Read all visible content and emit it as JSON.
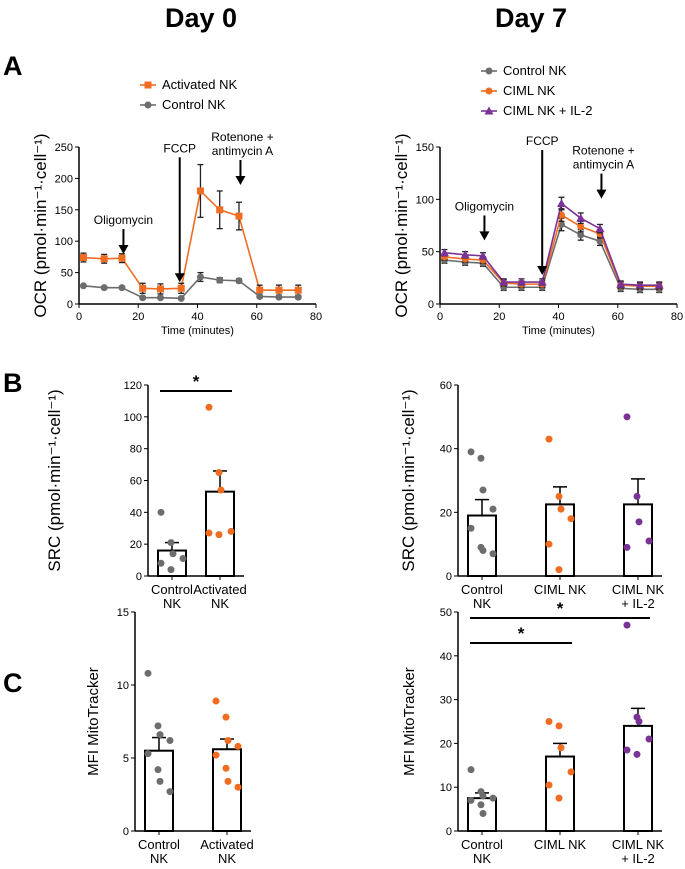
{
  "headers": {
    "day0": "Day 0",
    "day7": "Day 7"
  },
  "panels": {
    "A": "A",
    "B": "B",
    "C": "C"
  },
  "colors": {
    "grey": "#6d6d6d",
    "orange": "#ef6c21",
    "purple": "#7b3296",
    "black": "#000000"
  },
  "chart_data": [
    {
      "id": "A0",
      "type": "line",
      "xlabel": "Time (minutes)",
      "ylabel": "OCR (pmol·min⁻¹·cell⁻¹)",
      "xlim": [
        0,
        80
      ],
      "ylim": [
        0,
        250
      ],
      "xticks": [
        0,
        20,
        40,
        60,
        80
      ],
      "yticks": [
        0,
        50,
        100,
        150,
        200,
        250
      ],
      "legend": "top-left",
      "series": [
        {
          "name": "Activated NK",
          "color": "#ef6c21",
          "marker": "square",
          "x": [
            1.5,
            8.5,
            14.5,
            21.5,
            27.5,
            34.5,
            41,
            47.5,
            54,
            61,
            67.5,
            74
          ],
          "y": [
            74,
            72,
            73,
            25,
            24,
            25,
            180,
            150,
            140,
            22,
            22,
            22
          ],
          "err": [
            7,
            7,
            7,
            8,
            8,
            8,
            42,
            30,
            22,
            8,
            8,
            8
          ]
        },
        {
          "name": "Control NK",
          "color": "#6d6d6d",
          "marker": "circle",
          "x": [
            1.5,
            8.5,
            14.5,
            21.5,
            27.5,
            34.5,
            41,
            47.5,
            54,
            61,
            67.5,
            74
          ],
          "y": [
            29,
            26,
            26,
            10,
            10,
            9,
            43,
            38,
            37,
            12,
            11,
            11
          ],
          "err": [
            2,
            2,
            2,
            2,
            2,
            2,
            7,
            4,
            3,
            2,
            2,
            2
          ]
        }
      ],
      "annotations": [
        {
          "text": [
            "Oligomycin"
          ],
          "x": 15,
          "y": 70
        },
        {
          "text": [
            "FCCP"
          ],
          "x": 34,
          "y": 25
        },
        {
          "text": [
            "Rotenone +",
            "antimycin A"
          ],
          "x": 54.5,
          "y": 180
        }
      ]
    },
    {
      "id": "A7",
      "type": "line",
      "xlabel": "Time (minutes)",
      "ylabel": "OCR (pmol·min⁻¹·cell⁻¹)",
      "xlim": [
        0,
        80
      ],
      "ylim": [
        0,
        150
      ],
      "xticks": [
        0,
        20,
        40,
        60,
        80
      ],
      "yticks": [
        0,
        50,
        100,
        150
      ],
      "legend": "top-left",
      "series": [
        {
          "name": "Control NK",
          "color": "#6d6d6d",
          "marker": "circle",
          "x": [
            1.5,
            8.5,
            14.5,
            21.5,
            27.5,
            34.5,
            41,
            47.5,
            54,
            61,
            67.5,
            74
          ],
          "y": [
            42,
            40,
            39,
            16,
            16,
            16,
            76,
            66,
            60,
            15,
            14,
            14
          ],
          "err": [
            3,
            3,
            3,
            3,
            3,
            3,
            6,
            5,
            4,
            3,
            3,
            3
          ]
        },
        {
          "name": "CIML NK",
          "color": "#ef6c21",
          "marker": "circle",
          "x": [
            1.5,
            8.5,
            14.5,
            21.5,
            27.5,
            34.5,
            41,
            47.5,
            54,
            61,
            67.5,
            74
          ],
          "y": [
            45,
            43,
            42,
            20,
            19,
            19,
            85,
            74,
            67,
            18,
            17,
            17
          ],
          "err": [
            3,
            3,
            3,
            3,
            3,
            3,
            6,
            5,
            4,
            3,
            3,
            3
          ]
        },
        {
          "name": "CIML NK + IL-2",
          "color": "#7b3296",
          "marker": "triangle",
          "x": [
            1.5,
            8.5,
            14.5,
            21.5,
            27.5,
            34.5,
            41,
            47.5,
            54,
            61,
            67.5,
            74
          ],
          "y": [
            49,
            47,
            46,
            21,
            21,
            21,
            96,
            82,
            72,
            19,
            18,
            18
          ],
          "err": [
            3,
            3,
            3,
            3,
            3,
            3,
            6,
            5,
            4,
            3,
            3,
            3
          ]
        }
      ],
      "annotations": [
        {
          "text": [
            "Oligomycin"
          ],
          "x": 15,
          "y": 55
        },
        {
          "text": [
            "FCCP"
          ],
          "x": 34.5,
          "y": 22
        },
        {
          "text": [
            "Rotenone +",
            "antimycin A"
          ],
          "x": 54.5,
          "y": 95
        }
      ]
    },
    {
      "id": "B0",
      "type": "bar",
      "ylabel": "SRC (pmol·min⁻¹·cell⁻¹)",
      "ylim": [
        0,
        120
      ],
      "yticks": [
        0,
        20,
        40,
        60,
        80,
        100,
        120
      ],
      "categories": [
        [
          "Control",
          "NK"
        ],
        [
          "Activated",
          "NK"
        ]
      ],
      "means": [
        16,
        53
      ],
      "sem": [
        5,
        13
      ],
      "points": [
        [
          40,
          21,
          14,
          11,
          8,
          4
        ],
        [
          106,
          65,
          54,
          28,
          27,
          26
        ]
      ],
      "point_colors": [
        "#6d6d6d",
        "#ef6c21"
      ],
      "significance": [
        {
          "from": 0,
          "to": 1,
          "label": "*"
        }
      ]
    },
    {
      "id": "B7",
      "type": "bar",
      "ylabel": "SRC (pmol·min⁻¹·cell⁻¹)",
      "ylim": [
        0,
        60
      ],
      "yticks": [
        0,
        20,
        40,
        60
      ],
      "categories": [
        [
          "Control",
          "NK"
        ],
        [
          "CIML NK"
        ],
        [
          "CIML NK",
          "+ IL-2"
        ]
      ],
      "means": [
        19,
        22.5,
        22.5
      ],
      "sem": [
        5,
        5.5,
        8
      ],
      "points": [
        [
          39,
          37,
          27,
          21,
          15,
          9,
          8,
          7
        ],
        [
          43,
          25,
          21,
          18,
          10,
          2
        ],
        [
          50,
          25,
          17,
          11,
          9
        ]
      ],
      "point_colors": [
        "#6d6d6d",
        "#ef6c21",
        "#7b3296"
      ],
      "significance": []
    },
    {
      "id": "C0",
      "type": "bar",
      "ylabel": "MFI MitoTracker",
      "ylim": [
        0,
        15
      ],
      "yticks": [
        0,
        5,
        10,
        15
      ],
      "categories": [
        [
          "Control",
          "NK"
        ],
        [
          "Activated",
          "NK"
        ]
      ],
      "means": [
        5.5,
        5.6
      ],
      "sem": [
        0.9,
        0.7
      ],
      "points": [
        [
          10.8,
          7.2,
          6.6,
          6.2,
          5.3,
          4.2,
          3.4,
          2.7
        ],
        [
          8.9,
          7.8,
          6.2,
          5.8,
          5.2,
          4.3,
          3.4,
          3.0
        ]
      ],
      "point_colors": [
        "#6d6d6d",
        "#ef6c21"
      ],
      "significance": []
    },
    {
      "id": "C7",
      "type": "bar",
      "ylabel": "MFI MitoTracker",
      "ylim": [
        0,
        50
      ],
      "yticks": [
        0,
        10,
        20,
        30,
        40,
        50
      ],
      "categories": [
        [
          "Control",
          "NK"
        ],
        [
          "CIML NK"
        ],
        [
          "CIML NK",
          "+ IL-2"
        ]
      ],
      "means": [
        7.5,
        17,
        24
      ],
      "sem": [
        1.2,
        3,
        4
      ],
      "points": [
        [
          14,
          9,
          8,
          7.5,
          7,
          6,
          4
        ],
        [
          25,
          24,
          19,
          13.5,
          10.5,
          7.5
        ],
        [
          47,
          26,
          25,
          21,
          18.5,
          17.5
        ]
      ],
      "point_colors": [
        "#6d6d6d",
        "#ef6c21",
        "#7b3296"
      ],
      "significance": [
        {
          "from": 0,
          "to": 1,
          "label": "*"
        },
        {
          "from": 0,
          "to": 2,
          "label": "*"
        }
      ]
    }
  ]
}
